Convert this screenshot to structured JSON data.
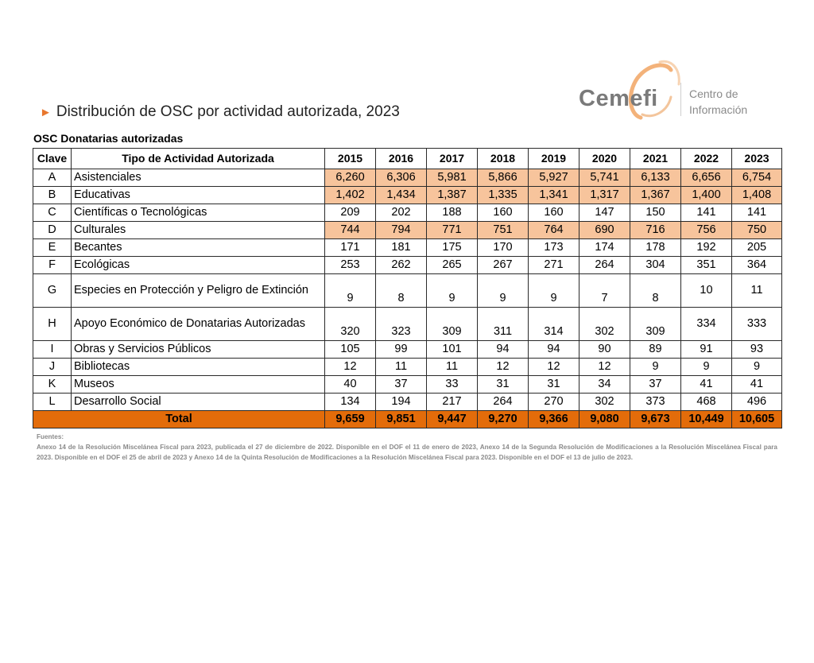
{
  "title": "Distribución de OSC por actividad autorizada, 2023",
  "subtitle": "OSC Donatarias autorizadas",
  "logo": {
    "wordmark": "Cemefi",
    "line1": "Centro de",
    "line2": "Información",
    "accent": "#f0a060"
  },
  "table": {
    "headers": {
      "clave": "Clave",
      "tipo": "Tipo de Actividad Autorizada",
      "years": [
        "2015",
        "2016",
        "2017",
        "2018",
        "2019",
        "2020",
        "2021",
        "2022",
        "2023"
      ]
    },
    "rows": [
      {
        "clave": "A",
        "tipo": "Asistenciales",
        "values": [
          "6,260",
          "6,306",
          "5,981",
          "5,866",
          "5,927",
          "5,741",
          "6,133",
          "6,656",
          "6,754"
        ]
      },
      {
        "clave": "B",
        "tipo": "Educativas",
        "values": [
          "1,402",
          "1,434",
          "1,387",
          "1,335",
          "1,341",
          "1,317",
          "1,367",
          "1,400",
          "1,408"
        ]
      },
      {
        "clave": "C",
        "tipo": "Científicas o Tecnológicas",
        "values": [
          "209",
          "202",
          "188",
          "160",
          "160",
          "147",
          "150",
          "141",
          "141"
        ]
      },
      {
        "clave": "D",
        "tipo": "Culturales",
        "values": [
          "744",
          "794",
          "771",
          "751",
          "764",
          "690",
          "716",
          "756",
          "750"
        ]
      },
      {
        "clave": "E",
        "tipo": "Becantes",
        "values": [
          "171",
          "181",
          "175",
          "170",
          "173",
          "174",
          "178",
          "192",
          "205"
        ]
      },
      {
        "clave": "F",
        "tipo": "Ecológicas",
        "values": [
          "253",
          "262",
          "265",
          "267",
          "271",
          "264",
          "304",
          "351",
          "364"
        ]
      },
      {
        "clave": "G",
        "tipo": "Especies en Protección y Peligro de Extinción",
        "values": [
          "9",
          "8",
          "9",
          "9",
          "9",
          "7",
          "8",
          "10",
          "11"
        ]
      },
      {
        "clave": "H",
        "tipo": "Apoyo Económico de Donatarias Autorizadas",
        "values": [
          "320",
          "323",
          "309",
          "311",
          "314",
          "302",
          "309",
          "334",
          "333"
        ]
      },
      {
        "clave": "I",
        "tipo": "Obras y Servicios Públicos",
        "values": [
          "105",
          "99",
          "101",
          "94",
          "94",
          "90",
          "89",
          "91",
          "93"
        ]
      },
      {
        "clave": "J",
        "tipo": "Bibliotecas",
        "values": [
          "12",
          "11",
          "11",
          "12",
          "12",
          "12",
          "9",
          "9",
          "9"
        ]
      },
      {
        "clave": "K",
        "tipo": "Museos",
        "values": [
          "40",
          "37",
          "33",
          "31",
          "31",
          "34",
          "37",
          "41",
          "41"
        ]
      },
      {
        "clave": "L",
        "tipo": "Desarrollo Social",
        "values": [
          "134",
          "194",
          "217",
          "264",
          "270",
          "302",
          "373",
          "468",
          "496"
        ]
      }
    ],
    "total": {
      "label": "Total",
      "values": [
        "9,659",
        "9,851",
        "9,447",
        "9,270",
        "9,366",
        "9,080",
        "9,673",
        "10,449",
        "10,605"
      ]
    },
    "colors": {
      "highlight": "#f7c49c",
      "total": "#e36c0a"
    }
  },
  "sources": {
    "heading": "Fuentes:",
    "text": "Anexo 14 de la Resolución Miscelánea Fiscal para 2023, publicada el 27 de diciembre de 2022. Disponible en el DOF el 11 de enero de 2023, Anexo 14 de la Segunda Resolución de Modificaciones a la Resolución Miscelánea Fiscal para 2023. Disponible en el DOF el 25 de abril de 2023 y Anexo 14 de la Quinta Resolución de Modificaciones a la Resolución Miscelánea Fiscal para 2023. Disponible en el DOF el 13 de julio de 2023."
  }
}
